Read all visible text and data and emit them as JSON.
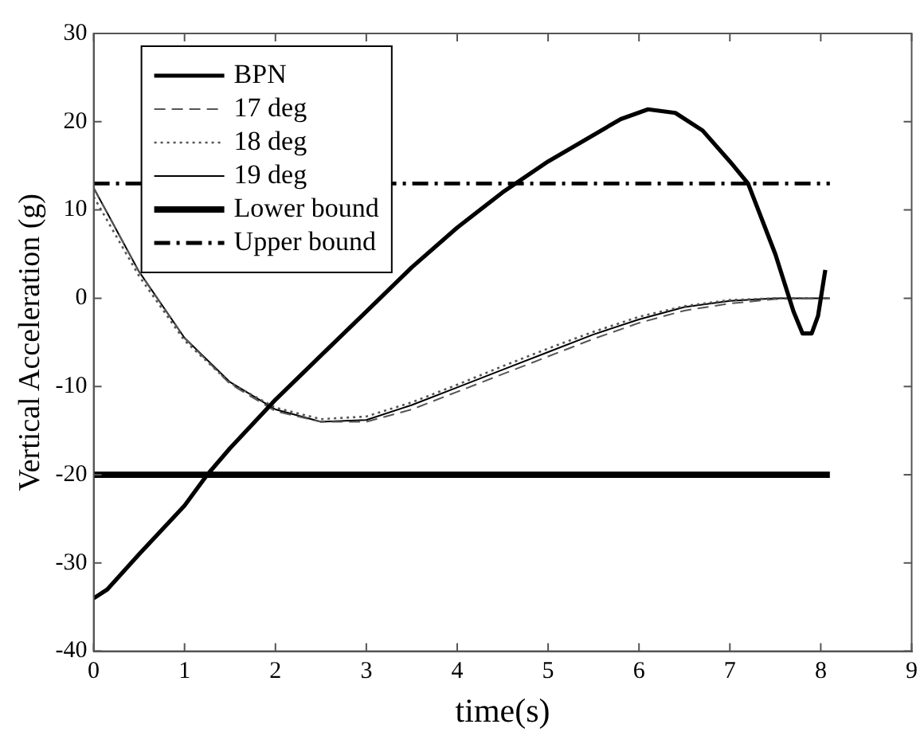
{
  "chart_data": {
    "type": "line",
    "xlabel": "time(s)",
    "ylabel": "Vertical Acceleration (g)",
    "xlim": [
      0,
      9
    ],
    "xticks": [
      0,
      1,
      2,
      3,
      4,
      5,
      6,
      7,
      8,
      9
    ],
    "ylim": [
      -40,
      30
    ],
    "yticks": [
      -40,
      -30,
      -20,
      -10,
      0,
      10,
      20,
      30
    ],
    "grid": false,
    "legend": "top left",
    "marker": "none",
    "series": [
      {
        "name": "BPN",
        "color": "#000000",
        "line_style": "solid",
        "x": [
          0,
          0.15,
          0.5,
          1,
          1.25,
          1.5,
          2,
          2.5,
          3,
          3.5,
          4,
          4.5,
          5,
          5.5,
          5.8,
          6.1,
          6.4,
          6.7,
          7,
          7.2,
          7.5,
          7.7,
          7.8,
          7.9,
          7.97,
          8.05
        ],
        "values": [
          -34,
          -33,
          -29,
          -23.5,
          -20,
          -17,
          -11.5,
          -6.5,
          -1.5,
          3.5,
          8,
          12,
          15.5,
          18.5,
          20.3,
          21.4,
          21,
          19,
          15.5,
          13,
          5,
          -1.5,
          -4,
          -4,
          -2,
          3.2
        ]
      },
      {
        "name": "17 deg",
        "color": "#555555",
        "line_style": "dashed",
        "x": [
          0,
          0.5,
          1,
          1.5,
          2,
          2.5,
          3,
          3.5,
          4,
          4.5,
          5,
          5.5,
          6,
          6.5,
          7,
          7.5,
          8.1
        ],
        "values": [
          12.5,
          3,
          -4.5,
          -9.7,
          -12.8,
          -14,
          -14,
          -12.6,
          -10.6,
          -8.6,
          -6.6,
          -4.6,
          -2.8,
          -1.4,
          -0.6,
          -0.1,
          0
        ]
      },
      {
        "name": "18 deg",
        "color": "#555555",
        "line_style": "dotted",
        "x": [
          0,
          0.5,
          1,
          1.5,
          2,
          2.5,
          3,
          3.5,
          4,
          4.5,
          5,
          5.5,
          6,
          6.5,
          7,
          7.5,
          8.1
        ],
        "values": [
          11.5,
          2.5,
          -4.8,
          -9.6,
          -12.4,
          -13.7,
          -13.4,
          -11.8,
          -9.8,
          -7.7,
          -5.7,
          -3.8,
          -2.1,
          -0.9,
          -0.2,
          0,
          0
        ]
      },
      {
        "name": "19 deg",
        "color": "#000000",
        "line_style": "solid",
        "x": [
          0,
          0.5,
          1,
          1.5,
          2,
          2.5,
          3,
          3.5,
          4,
          4.5,
          5,
          5.5,
          6,
          6.5,
          7,
          7.5,
          8.1
        ],
        "values": [
          12.5,
          3,
          -4.5,
          -9.5,
          -12.6,
          -14,
          -13.8,
          -12.1,
          -10.1,
          -8.1,
          -6.1,
          -4.1,
          -2.4,
          -1,
          -0.3,
          0,
          0
        ]
      },
      {
        "name": "Lower bound",
        "color": "#000000",
        "line_style": "solid",
        "x": [
          0,
          8.1
        ],
        "values": [
          -20,
          -20
        ]
      },
      {
        "name": "Upper bound",
        "color": "#000000",
        "line_style": "dashdot",
        "x": [
          0,
          8.1
        ],
        "values": [
          13,
          13
        ]
      }
    ]
  }
}
